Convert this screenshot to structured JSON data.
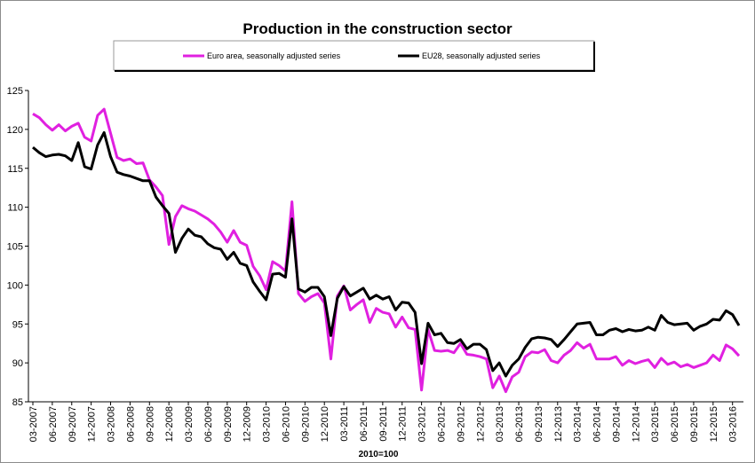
{
  "chart_data": {
    "type": "line",
    "title": "Production in the construction sector",
    "xlabel": "2010=100",
    "ylabel": "",
    "ylim": [
      85,
      125
    ],
    "yticks": [
      85,
      90,
      95,
      100,
      105,
      110,
      115,
      120,
      125
    ],
    "xtick_labels": [
      "03-2007",
      "06-2007",
      "09-2007",
      "12-2007",
      "03-2008",
      "06-2008",
      "09-2008",
      "12-2008",
      "03-2009",
      "06-2009",
      "09-2009",
      "12-2009",
      "03-2010",
      "06-2010",
      "09-2010",
      "12-2010",
      "03-2011",
      "06-2011",
      "09-2011",
      "12-2011",
      "03-2012",
      "06-2012",
      "09-2012",
      "12-2012",
      "03-2013",
      "06-2013",
      "09-2013",
      "12-2013",
      "03-2014",
      "06-2014",
      "09-2014",
      "12-2014",
      "03-2015",
      "06-2015",
      "09-2015",
      "12-2015",
      "03-2016"
    ],
    "grid": false,
    "legend_position": "top",
    "x_start": "03-2007",
    "x_frequency": "monthly",
    "series": [
      {
        "name": "Euro area, seasonally adjusted series",
        "color": "#e020e0",
        "values": [
          122.0,
          121.5,
          120.6,
          119.9,
          120.6,
          119.8,
          120.4,
          120.8,
          119.0,
          118.5,
          121.8,
          122.6,
          119.5,
          116.4,
          116.0,
          116.2,
          115.6,
          115.7,
          113.5,
          112.6,
          111.5,
          105.2,
          108.8,
          110.2,
          109.8,
          109.5,
          109.0,
          108.5,
          107.8,
          106.8,
          105.5,
          107.0,
          105.5,
          105.1,
          102.4,
          101.2,
          99.4,
          103.0,
          102.5,
          101.8,
          110.7,
          98.9,
          97.9,
          98.5,
          98.9,
          97.7,
          90.5,
          98.6,
          99.9,
          96.8,
          97.5,
          98.1,
          95.2,
          97.0,
          96.5,
          96.3,
          94.6,
          95.9,
          94.5,
          94.3,
          86.5,
          94.3,
          91.6,
          91.5,
          91.6,
          91.3,
          92.5,
          91.1,
          91.0,
          90.8,
          90.5,
          86.8,
          88.3,
          86.3,
          88.2,
          88.8,
          90.8,
          91.4,
          91.3,
          91.7,
          90.3,
          90.0,
          91.0,
          91.6,
          92.6,
          91.9,
          92.4,
          90.5,
          90.5,
          90.5,
          90.8,
          89.7,
          90.3,
          89.9,
          90.2,
          90.4,
          89.4,
          90.6,
          89.8,
          90.1,
          89.5,
          89.8,
          89.4,
          89.7,
          90.0,
          91.0,
          90.3,
          92.3,
          91.8,
          90.9
        ]
      },
      {
        "name": "EU28, seasonally adjusted series",
        "color": "#000000",
        "values": [
          117.7,
          117.0,
          116.5,
          116.7,
          116.8,
          116.6,
          116.0,
          118.3,
          115.2,
          114.9,
          118.0,
          119.6,
          116.5,
          114.5,
          114.2,
          114.0,
          113.7,
          113.4,
          113.4,
          111.3,
          110.2,
          109.2,
          104.2,
          106.0,
          107.2,
          106.4,
          106.2,
          105.3,
          104.8,
          104.6,
          103.3,
          104.2,
          102.8,
          102.5,
          100.4,
          99.2,
          98.1,
          101.4,
          101.5,
          101.0,
          108.5,
          99.5,
          99.1,
          99.7,
          99.7,
          98.5,
          93.5,
          98.3,
          99.8,
          98.6,
          99.1,
          99.6,
          98.2,
          98.7,
          98.2,
          98.5,
          96.8,
          97.8,
          97.7,
          96.5,
          89.9,
          95.1,
          93.6,
          93.8,
          92.6,
          92.5,
          93.0,
          91.8,
          92.4,
          92.4,
          91.7,
          89.0,
          90.0,
          88.3,
          89.7,
          90.5,
          92.0,
          93.1,
          93.3,
          93.2,
          93.0,
          92.1,
          93.0,
          94.0,
          95.0,
          95.1,
          95.2,
          93.6,
          93.6,
          94.2,
          94.4,
          94.0,
          94.3,
          94.1,
          94.2,
          94.6,
          94.2,
          96.1,
          95.2,
          94.9,
          95.0,
          95.1,
          94.2,
          94.7,
          95.0,
          95.6,
          95.5,
          96.7,
          96.2,
          94.8
        ]
      }
    ]
  }
}
